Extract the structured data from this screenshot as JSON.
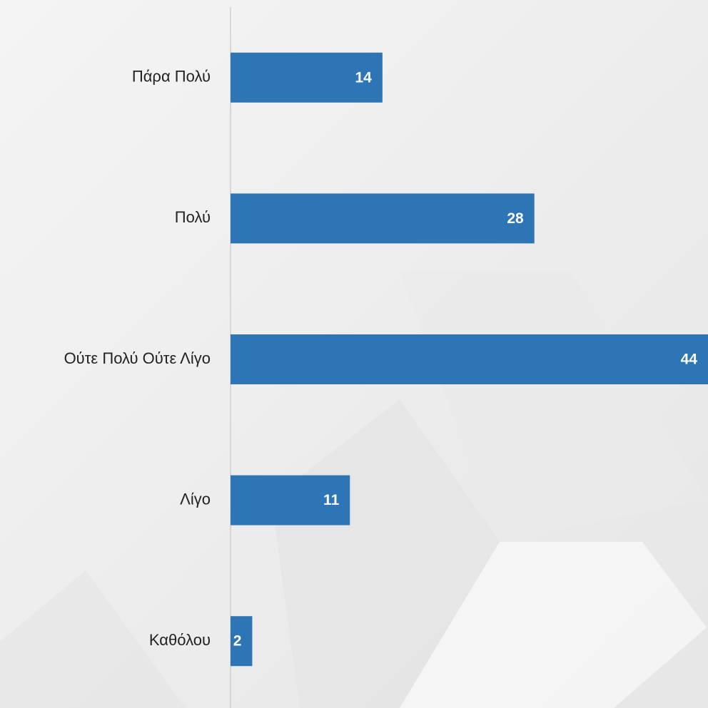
{
  "chart_data": {
    "type": "bar",
    "orientation": "horizontal",
    "categories": [
      "Πάρα Πολύ",
      "Πολύ",
      "Ούτε Πολύ Ούτε Λίγο",
      "Λίγο",
      "Καθόλου"
    ],
    "values": [
      14,
      28,
      44,
      11,
      2
    ],
    "color": "#2e75b6"
  }
}
